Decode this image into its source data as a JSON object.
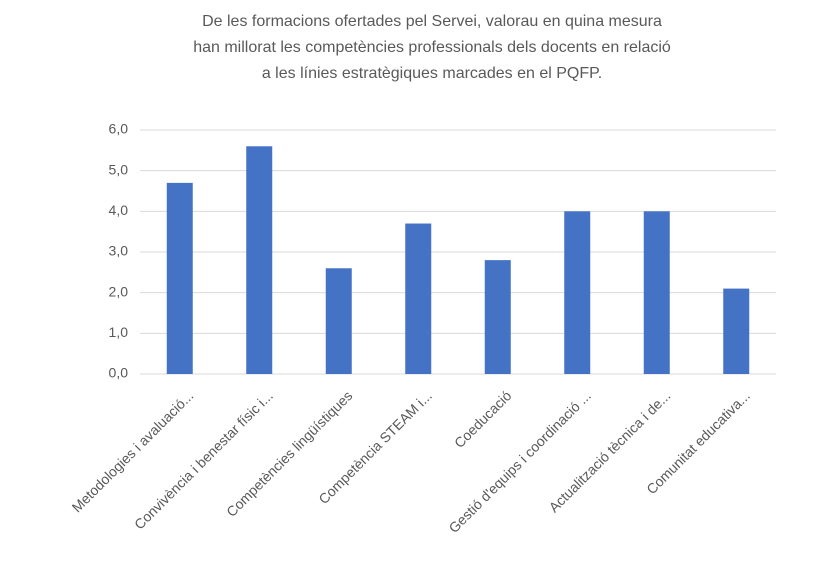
{
  "chart_data": {
    "type": "bar",
    "title": [
      "De les formacions ofertades pel Servei, valorau en quina mesura",
      "han millorat les competències professionals dels docents en relació",
      "a les línies estratègiques marcades en el PQFP."
    ],
    "categories": [
      "Metodologies i avaluació...",
      "Convivència i benestar físic i...",
      "Competències lingüístiques",
      "Competència STEAM i...",
      "Coeducació",
      "Gestió d'equips i coordinació ...",
      "Actualització tècnica i de...",
      "Comunitat educativa..."
    ],
    "values": [
      4.7,
      5.6,
      2.6,
      3.7,
      2.8,
      4.0,
      4.0,
      2.1
    ],
    "color": "#4472c4",
    "ylim": [
      0,
      6
    ],
    "yticks": [
      {
        "value": 0,
        "label": "0,0"
      },
      {
        "value": 1,
        "label": "1,0"
      },
      {
        "value": 2,
        "label": "2,0"
      },
      {
        "value": 3,
        "label": "3,0"
      },
      {
        "value": 4,
        "label": "4,0"
      },
      {
        "value": 5,
        "label": "5,0"
      },
      {
        "value": 6,
        "label": "6,0"
      }
    ],
    "grid": true
  }
}
